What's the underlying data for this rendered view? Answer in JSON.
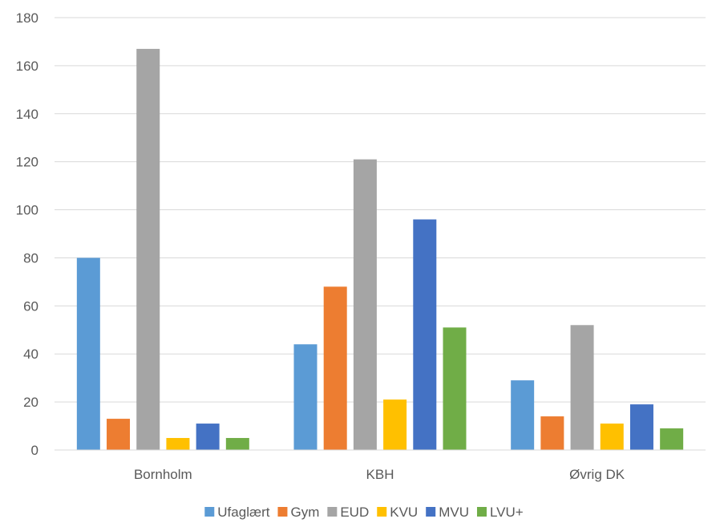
{
  "chart_data": {
    "type": "bar",
    "categories": [
      "Bornholm",
      "KBH",
      "Øvrig DK"
    ],
    "series": [
      {
        "name": "Ufaglært",
        "color": "#5B9BD5",
        "values": [
          80,
          44,
          29
        ]
      },
      {
        "name": "Gym",
        "color": "#ED7D31",
        "values": [
          13,
          68,
          14
        ]
      },
      {
        "name": "EUD",
        "color": "#A5A5A5",
        "values": [
          167,
          121,
          52
        ]
      },
      {
        "name": "KVU",
        "color": "#FFC000",
        "values": [
          5,
          21,
          11
        ]
      },
      {
        "name": "MVU",
        "color": "#4472C4",
        "values": [
          11,
          96,
          19
        ]
      },
      {
        "name": "LVU+",
        "color": "#70AD47",
        "values": [
          5,
          51,
          9
        ]
      }
    ],
    "ylim": [
      0,
      180
    ],
    "yticks": [
      "0",
      "20",
      "40",
      "60",
      "80",
      "100",
      "120",
      "140",
      "160",
      "180"
    ],
    "grid": true,
    "legend_position": "bottom"
  }
}
